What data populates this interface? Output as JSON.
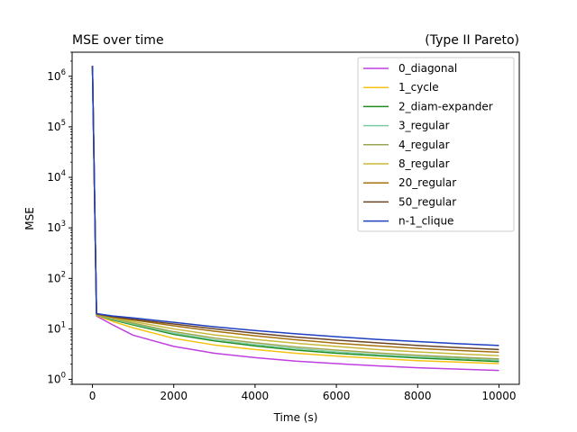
{
  "chart_data": {
    "type": "line",
    "title": "MSE over time",
    "title_right": "(Type II Pareto)",
    "xlabel": "Time (s)",
    "ylabel": "MSE",
    "xlim": [
      -500,
      10500
    ],
    "ylim": [
      0.8,
      3000000
    ],
    "yscale": "log",
    "xticks": [
      0,
      2000,
      4000,
      6000,
      8000,
      10000
    ],
    "xtick_labels": [
      "0",
      "2000",
      "4000",
      "6000",
      "8000",
      "10000"
    ],
    "yticks": [
      1,
      10,
      100,
      1000,
      10000,
      100000,
      1000000
    ],
    "ytick_labels": [
      {
        "base": "10",
        "exp": "0"
      },
      {
        "base": "10",
        "exp": "1"
      },
      {
        "base": "10",
        "exp": "2"
      },
      {
        "base": "10",
        "exp": "3"
      },
      {
        "base": "10",
        "exp": "4"
      },
      {
        "base": "10",
        "exp": "5"
      },
      {
        "base": "10",
        "exp": "6"
      }
    ],
    "grid": false,
    "legend_position": "top-right",
    "x": [
      0,
      100,
      500,
      1000,
      2000,
      3000,
      4000,
      5000,
      6000,
      7000,
      8000,
      9000,
      10000
    ],
    "series": [
      {
        "name": "0_diagonal",
        "color": "#bf3fdf",
        "values": [
          1600000,
          18,
          12,
          7.5,
          4.5,
          3.3,
          2.7,
          2.3,
          2.05,
          1.85,
          1.7,
          1.6,
          1.5
        ]
      },
      {
        "name": "1_cycle",
        "color": "#f5c211",
        "values": [
          1600000,
          18.5,
          14,
          10.5,
          6.5,
          4.8,
          3.9,
          3.3,
          2.9,
          2.6,
          2.35,
          2.2,
          2.05
        ]
      },
      {
        "name": "2_diam-expander",
        "color": "#1e8c1e",
        "values": [
          1600000,
          19,
          15,
          12,
          7.8,
          5.8,
          4.6,
          3.8,
          3.3,
          2.95,
          2.65,
          2.45,
          2.25
        ]
      },
      {
        "name": "3_regular",
        "color": "#7ccba2",
        "values": [
          1600000,
          19,
          15.5,
          12.5,
          8.2,
          6.1,
          4.9,
          4.1,
          3.5,
          3.1,
          2.8,
          2.6,
          2.4
        ]
      },
      {
        "name": "4_regular",
        "color": "#9aa650",
        "values": [
          1600000,
          19,
          16,
          13,
          8.8,
          6.6,
          5.3,
          4.4,
          3.8,
          3.35,
          3.0,
          2.75,
          2.55
        ]
      },
      {
        "name": "8_regular",
        "color": "#c8b83a",
        "values": [
          1600000,
          19.5,
          16.5,
          14,
          10,
          7.6,
          6.2,
          5.2,
          4.5,
          3.9,
          3.5,
          3.2,
          2.95
        ]
      },
      {
        "name": "20_regular",
        "color": "#a5710e",
        "values": [
          1600000,
          19.5,
          17,
          15,
          11.5,
          9.0,
          7.3,
          6.1,
          5.2,
          4.6,
          4.1,
          3.75,
          3.45
        ]
      },
      {
        "name": "50_regular",
        "color": "#6b4423",
        "values": [
          1600000,
          20,
          17.5,
          15.5,
          12.5,
          10,
          8.2,
          6.9,
          6.0,
          5.3,
          4.7,
          4.25,
          3.9
        ]
      },
      {
        "name": "n-1_clique",
        "color": "#1f3fbf",
        "values": [
          1600000,
          20,
          18,
          16.5,
          13.5,
          11,
          9.3,
          8.0,
          7.0,
          6.2,
          5.6,
          5.1,
          4.7
        ]
      }
    ]
  }
}
